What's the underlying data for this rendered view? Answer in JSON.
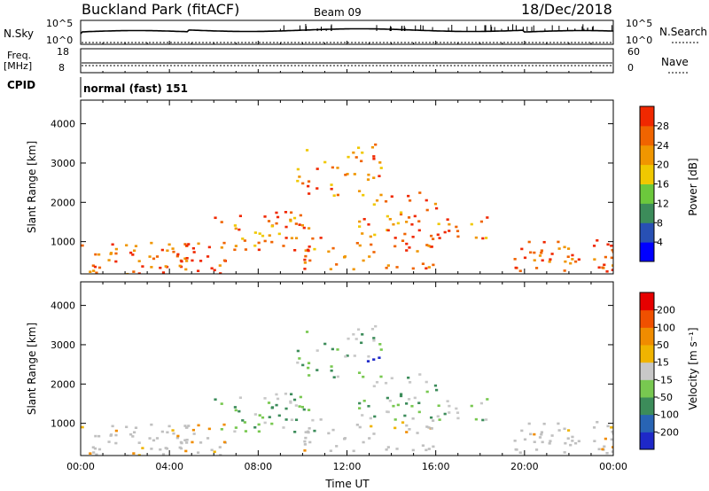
{
  "header": {
    "title": "Buckland Park (fitACF)",
    "beam": "Beam 09",
    "date": "18/Dec/2018"
  },
  "strips": {
    "nsky_label": "N.Sky",
    "nsky_ticks": [
      "10^5",
      "10^0"
    ],
    "nsearch_label": "N.Search",
    "nsearch_ticks": [
      "10^5",
      "10^0"
    ],
    "freq_label_1": "Freq.",
    "freq_label_2": "[MHz]",
    "freq_ticks": [
      "18",
      "8"
    ],
    "nave_label": "Nave",
    "nave_ticks": [
      "60",
      "0"
    ],
    "cpid_label": "CPID",
    "cpid_value": "normal (fast) 151"
  },
  "chart_data": [
    {
      "type": "heatmap",
      "title": "",
      "xlabel": "",
      "ylabel": "Slant Range [km]",
      "x_range_hours": [
        0,
        24
      ],
      "ylim": [
        180,
        4600
      ],
      "yticks": [
        "1000",
        "2000",
        "3000",
        "4000"
      ],
      "colorbar_label": "Power [dB]",
      "colorbar_ticks": [
        "4",
        "8",
        "12",
        "16",
        "20",
        "24",
        "28"
      ],
      "colorbar_colors": [
        "#0000ff",
        "#2850b4",
        "#3c8c5a",
        "#6cc83c",
        "#f0c800",
        "#f09600",
        "#f06400",
        "#f02800"
      ]
    },
    {
      "type": "heatmap",
      "title": "",
      "xlabel": "Time UT",
      "ylabel": "Slant Range [km]",
      "x_range_hours": [
        0,
        24
      ],
      "ylim": [
        180,
        4600
      ],
      "xticks": [
        "00:00",
        "04:00",
        "08:00",
        "12:00",
        "16:00",
        "20:00",
        "00:00"
      ],
      "yticks": [
        "1000",
        "2000",
        "3000",
        "4000"
      ],
      "colorbar_label": "Velocity [m s⁻¹]",
      "colorbar_ticks": [
        "200",
        "100",
        "50",
        "15",
        "-15",
        "-50",
        "-100",
        "-200"
      ],
      "colorbar_colors": [
        "#1e28c8",
        "#2864b4",
        "#3c8c5a",
        "#78c850",
        "#c8c8c8",
        "#f0b400",
        "#f08c00",
        "#f05000",
        "#e60000"
      ],
      "ground_scatter_color": "#c0c0c0"
    }
  ]
}
